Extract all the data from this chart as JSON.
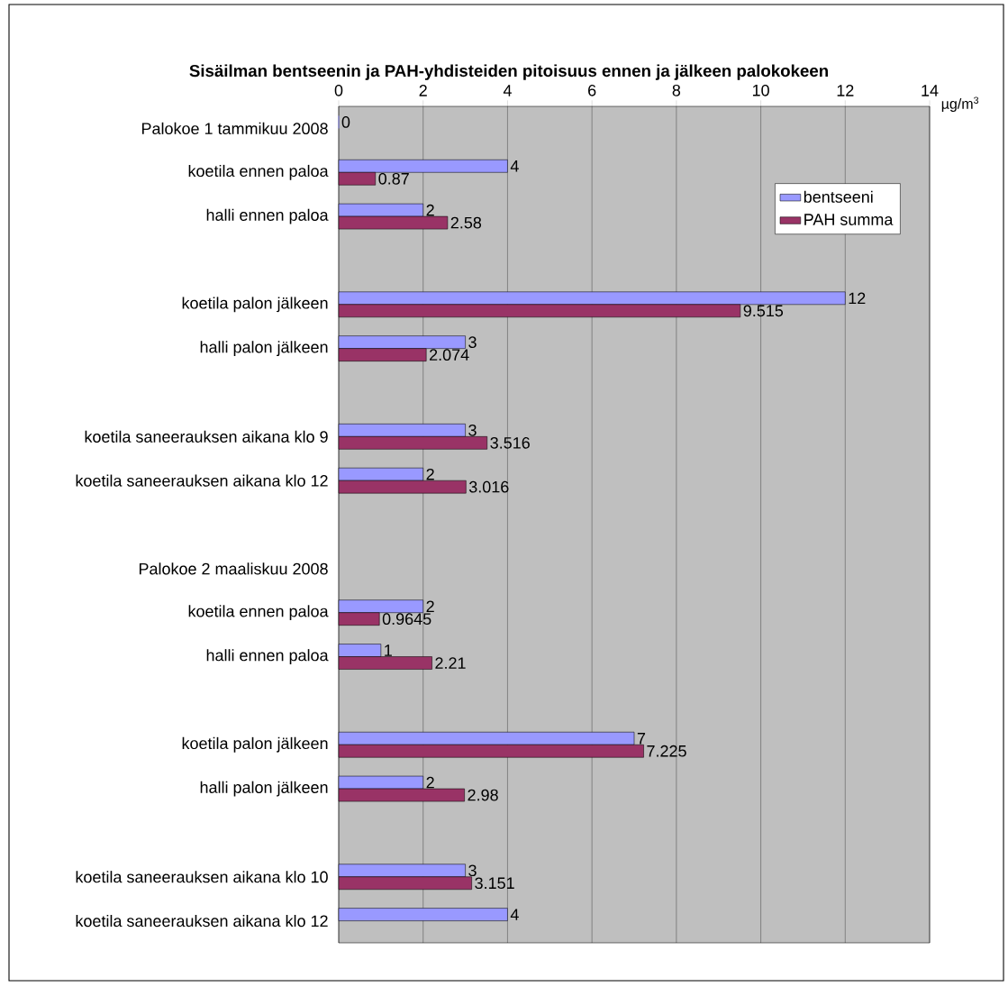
{
  "chart_data": {
    "type": "bar",
    "orientation": "horizontal",
    "title": "Sisäilman bentseenin ja PAH-yhdisteiden pitoisuus ennen ja jälkeen palokokeen",
    "xlabel": "µg/m$^{3}$",
    "categories": [
      "Palokoe 1 tammikuu 2008",
      "koetila ennen paloa",
      "halli ennen paloa",
      null,
      "koetila palon jälkeen",
      "halli palon jälkeen",
      null,
      "koetila saneerauksen aikana klo 9",
      "koetila saneerauksen aikana klo 12",
      null,
      "Palokoe 2 maaliskuu 2008",
      "koetila ennen paloa",
      "halli ennen paloa",
      null,
      "koetila palon jälkeen",
      "halli palon jälkeen",
      null,
      "koetila saneerauksen aikana klo 10",
      "koetila saneerauksen aikana klo 12"
    ],
    "series": [
      {
        "name": "bentseeni",
        "color": "#9999ff",
        "values": [
          0,
          4,
          2,
          null,
          12,
          3,
          null,
          3,
          2,
          null,
          null,
          2,
          1,
          null,
          7,
          2,
          null,
          3,
          4
        ]
      },
      {
        "name": "PAH summa",
        "color": "#993366",
        "values": [
          null,
          0.87,
          2.58,
          null,
          9.515,
          2.074,
          null,
          3.516,
          3.016,
          null,
          null,
          0.9645,
          2.21,
          null,
          7.225,
          2.98,
          null,
          3.151,
          null
        ]
      }
    ],
    "xlim": [
      0,
      14
    ],
    "xticks": [
      0,
      2,
      4,
      6,
      8,
      10,
      12,
      14
    ],
    "grid": "x",
    "legend": "top right",
    "data_labels": true
  }
}
